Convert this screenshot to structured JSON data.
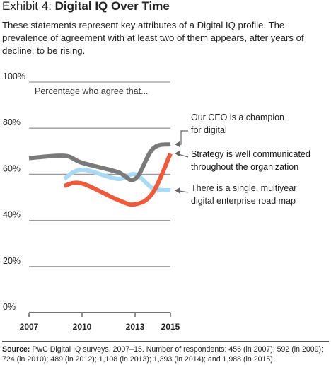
{
  "title": {
    "prefix": "Exhibit 4: ",
    "main": "Digital IQ Over Time"
  },
  "description": "These statements represent key attributes of a Digital IQ profile. The prevalence of agreement with at least two of them appears, after years of decline, to be rising.",
  "source": {
    "label": "Source:",
    "text": "PwC Digital IQ surveys, 2007–15. Number of respondents: 456 (in 2007); 592 (in 2009); 724 (in 2010); 489 (in 2012); 1,108 (in 2013); 1,393 (in 2014); and 1,988 (in 2015)."
  },
  "chart_data": {
    "type": "line",
    "annotation": "Percentage who agree that...",
    "y_ticks": [
      "100%",
      "80%",
      "60%",
      "40%",
      "20%",
      "0%"
    ],
    "y_tick_values": [
      100,
      80,
      60,
      40,
      20,
      0
    ],
    "x_ticks": [
      "2007",
      "2010",
      "2013",
      "2015"
    ],
    "x_tick_values": [
      2007,
      2010,
      2013,
      2015
    ],
    "xlim": [
      2007,
      2015
    ],
    "ylim": [
      0,
      100
    ],
    "grid": true,
    "series": [
      {
        "name": "Our CEO is a champion for digital",
        "label_lines": [
          "Our CEO is a champion",
          "for digital"
        ],
        "color": "#7a7a7a",
        "points": [
          [
            2007,
            67
          ],
          [
            2009,
            68
          ],
          [
            2010,
            65
          ],
          [
            2012,
            61
          ],
          [
            2013,
            58
          ],
          [
            2014,
            71
          ],
          [
            2015,
            73
          ]
        ]
      },
      {
        "name": "Strategy is well communicated throughout the organization",
        "label_lines": [
          "Strategy is well communicated",
          "throughout the organization"
        ],
        "color": "#ef5b3a",
        "points": [
          [
            2009,
            55
          ],
          [
            2010,
            56
          ],
          [
            2012,
            49
          ],
          [
            2013,
            47
          ],
          [
            2014,
            52
          ],
          [
            2015,
            69
          ]
        ]
      },
      {
        "name": "There is a single, multiyear digital enterprise road map",
        "label_lines": [
          "There is a single, multiyear",
          "digital enterprise road map"
        ],
        "color": "#a9dcf4",
        "points": [
          [
            2009,
            58
          ],
          [
            2010,
            62
          ],
          [
            2012,
            58
          ],
          [
            2013,
            60
          ],
          [
            2014,
            54
          ],
          [
            2015,
            53
          ]
        ]
      }
    ]
  }
}
